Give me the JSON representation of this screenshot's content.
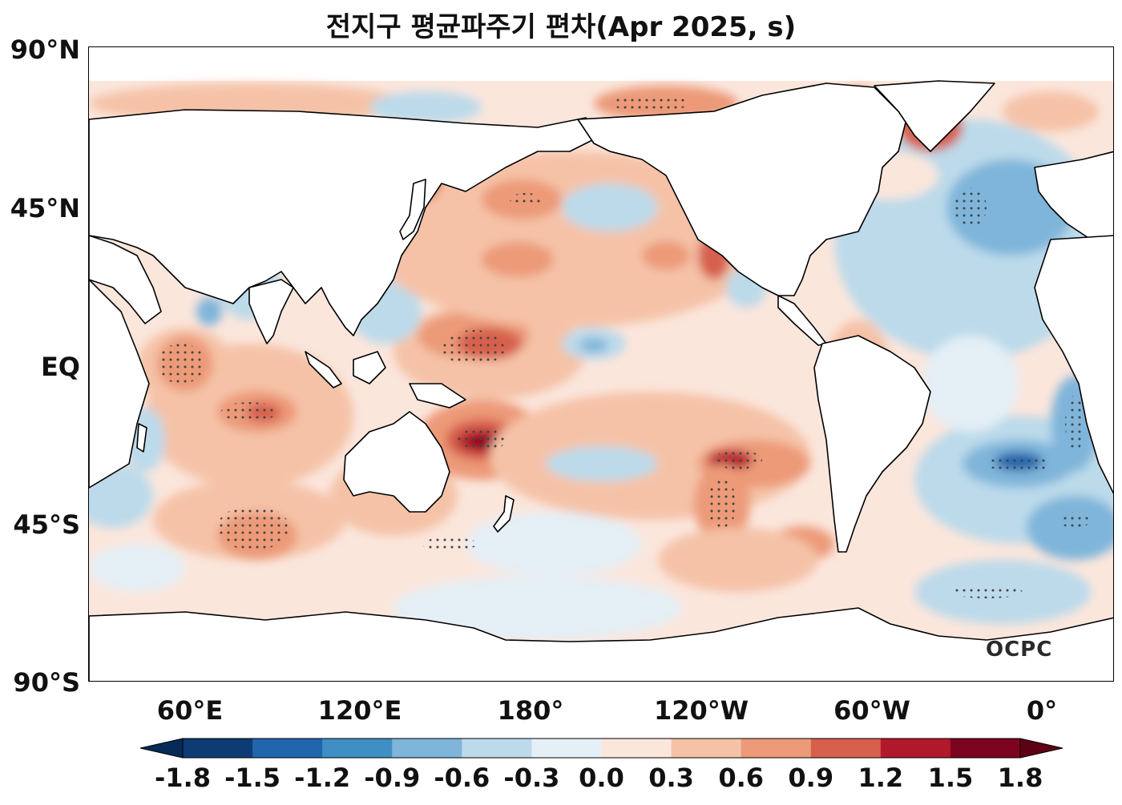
{
  "title": "전지구 평균파주기 편차(Apr 2025, s)",
  "logo_text": "OCPC",
  "lat_labels": [
    "90°N",
    "45°N",
    "EQ",
    "45°S",
    "90°S"
  ],
  "lon_labels": [
    "60°E",
    "120°E",
    "180°",
    "120°W",
    "60°W",
    "0°"
  ],
  "colorbar": {
    "ticks": [
      "-1.8",
      "-1.5",
      "-1.2",
      "-0.9",
      "-0.6",
      "-0.3",
      "0.0",
      "0.3",
      "0.6",
      "0.9",
      "1.2",
      "1.5",
      "1.8"
    ],
    "colors": [
      "#0d3b73",
      "#2166ac",
      "#3f8ec4",
      "#7fb5da",
      "#bcdaea",
      "#e4eff6",
      "#fbe6dc",
      "#f5c2a7",
      "#ec9a78",
      "#d6604d",
      "#b2182b",
      "#7c0421"
    ],
    "under_color": "#072b57",
    "over_color": "#5e0115"
  }
}
